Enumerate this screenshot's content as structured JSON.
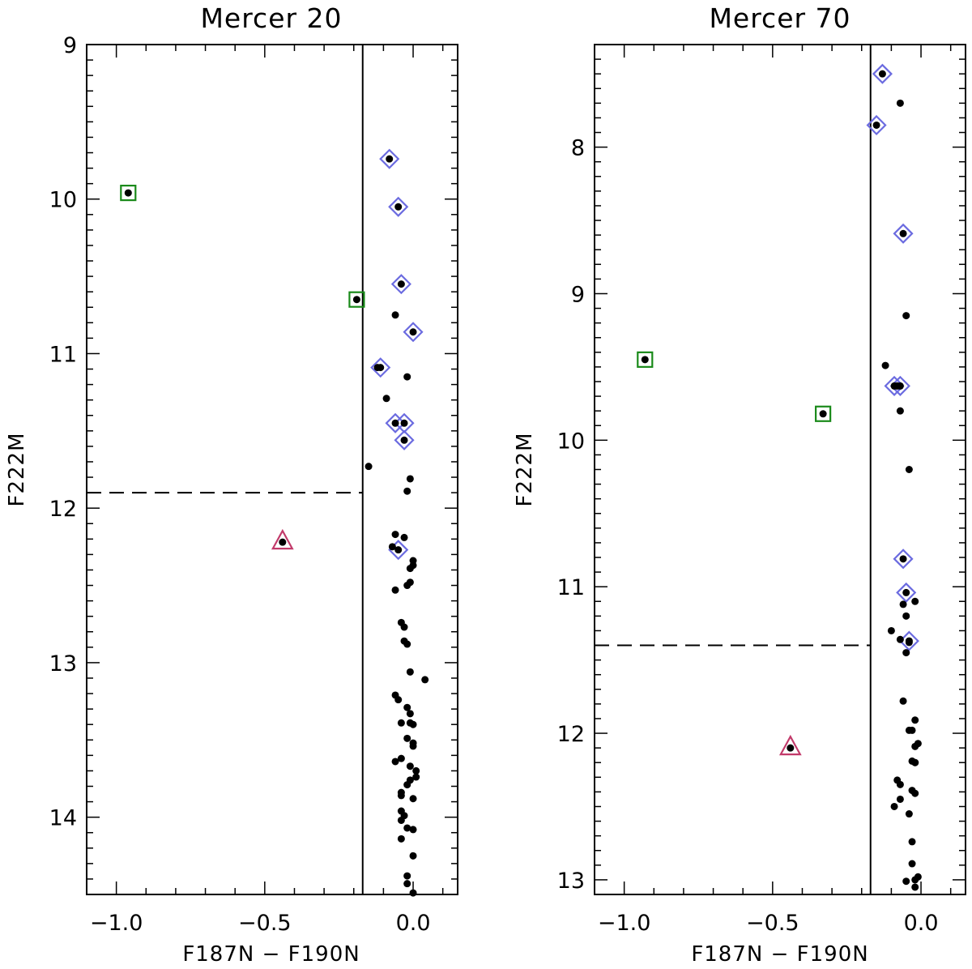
{
  "chart_data": [
    {
      "type": "scatter",
      "title": "Mercer 20",
      "xlabel": "F187N − F190N",
      "ylabel": "F222M",
      "xlim": [
        -1.1,
        0.15
      ],
      "ylim": [
        14.5,
        9.0
      ],
      "y_inverted": true,
      "xticks": [
        {
          "value": -1.0,
          "label": "−1.0"
        },
        {
          "value": -0.5,
          "label": "−0.5"
        },
        {
          "value": 0.0,
          "label": "0.0"
        }
      ],
      "yticks": [
        {
          "value": 9,
          "label": "9"
        },
        {
          "value": 10,
          "label": "10"
        },
        {
          "value": 11,
          "label": "11"
        },
        {
          "value": 12,
          "label": "12"
        },
        {
          "value": 13,
          "label": "13"
        },
        {
          "value": 14,
          "label": "14"
        }
      ],
      "vertical_line": {
        "x": -0.17,
        "style": "solid"
      },
      "horizontal_line": {
        "y": 11.9,
        "x_from": -1.1,
        "x_to": -0.17,
        "style": "dashed"
      },
      "marker_colors": {
        "square": "#1a8a1a",
        "diamond": "#6b6be0",
        "triangle": "#c23a6a",
        "dot": "#000000"
      },
      "squares": [
        [
          -0.96,
          9.96
        ],
        [
          -0.19,
          10.65
        ]
      ],
      "triangles": [
        [
          -0.44,
          12.22
        ]
      ],
      "diamonds": [
        [
          -0.08,
          9.74
        ],
        [
          -0.05,
          10.05
        ],
        [
          -0.04,
          10.55
        ],
        [
          0.0,
          10.86
        ],
        [
          -0.11,
          11.09
        ],
        [
          -0.06,
          11.45
        ],
        [
          -0.03,
          11.45
        ],
        [
          -0.03,
          11.56
        ],
        [
          -0.05,
          12.27
        ]
      ],
      "points": [
        [
          -0.96,
          9.96
        ],
        [
          -0.19,
          10.65
        ],
        [
          -0.44,
          12.22
        ],
        [
          -0.08,
          9.74
        ],
        [
          -0.05,
          10.05
        ],
        [
          -0.04,
          10.55
        ],
        [
          0.0,
          10.86
        ],
        [
          -0.11,
          11.09
        ],
        [
          -0.06,
          11.45
        ],
        [
          -0.03,
          11.45
        ],
        [
          -0.03,
          11.56
        ],
        [
          -0.05,
          12.27
        ],
        [
          -0.06,
          10.75
        ],
        [
          -0.12,
          11.09
        ],
        [
          -0.02,
          11.15
        ],
        [
          -0.09,
          11.29
        ],
        [
          -0.15,
          11.73
        ],
        [
          -0.01,
          11.81
        ],
        [
          -0.02,
          11.89
        ],
        [
          -0.06,
          12.17
        ],
        [
          -0.03,
          12.19
        ],
        [
          -0.07,
          12.25
        ],
        [
          0.0,
          12.34
        ],
        [
          0.0,
          12.37
        ],
        [
          -0.01,
          12.39
        ],
        [
          -0.01,
          12.48
        ],
        [
          -0.02,
          12.5
        ],
        [
          -0.06,
          12.53
        ],
        [
          -0.04,
          12.74
        ],
        [
          -0.03,
          12.77
        ],
        [
          -0.03,
          12.86
        ],
        [
          -0.02,
          12.88
        ],
        [
          -0.01,
          13.06
        ],
        [
          0.04,
          13.11
        ],
        [
          -0.06,
          13.21
        ],
        [
          -0.05,
          13.24
        ],
        [
          -0.02,
          13.29
        ],
        [
          -0.01,
          13.33
        ],
        [
          -0.04,
          13.39
        ],
        [
          -0.01,
          13.39
        ],
        [
          0.0,
          13.4
        ],
        [
          -0.02,
          13.49
        ],
        [
          0.0,
          13.52
        ],
        [
          0.0,
          13.54
        ],
        [
          -0.06,
          13.64
        ],
        [
          -0.04,
          13.62
        ],
        [
          -0.01,
          13.67
        ],
        [
          0.01,
          13.7
        ],
        [
          0.01,
          13.74
        ],
        [
          -0.01,
          13.76
        ],
        [
          -0.02,
          13.79
        ],
        [
          -0.04,
          13.84
        ],
        [
          -0.04,
          13.86
        ],
        [
          0.0,
          13.88
        ],
        [
          -0.04,
          13.96
        ],
        [
          -0.03,
          13.99
        ],
        [
          -0.04,
          14.02
        ],
        [
          -0.02,
          14.07
        ],
        [
          0.0,
          14.08
        ],
        [
          -0.04,
          14.14
        ],
        [
          0.0,
          14.25
        ],
        [
          -0.02,
          14.38
        ],
        [
          -0.02,
          14.43
        ],
        [
          0.0,
          14.49
        ]
      ]
    },
    {
      "type": "scatter",
      "title": "Mercer 70",
      "xlabel": "F187N − F190N",
      "ylabel": "F222M",
      "xlim": [
        -1.1,
        0.15
      ],
      "ylim": [
        13.1,
        7.3
      ],
      "y_inverted": true,
      "xticks": [
        {
          "value": -1.0,
          "label": "−1.0"
        },
        {
          "value": -0.5,
          "label": "−0.5"
        },
        {
          "value": 0.0,
          "label": "0.0"
        }
      ],
      "yticks": [
        {
          "value": 8,
          "label": "8"
        },
        {
          "value": 9,
          "label": "9"
        },
        {
          "value": 10,
          "label": "10"
        },
        {
          "value": 11,
          "label": "11"
        },
        {
          "value": 12,
          "label": "12"
        },
        {
          "value": 13,
          "label": "13"
        }
      ],
      "vertical_line": {
        "x": -0.17,
        "style": "solid"
      },
      "horizontal_line": {
        "y": 11.4,
        "x_from": -1.1,
        "x_to": -0.17,
        "style": "dashed"
      },
      "marker_colors": {
        "square": "#1a8a1a",
        "diamond": "#6b6be0",
        "triangle": "#c23a6a",
        "dot": "#000000"
      },
      "squares": [
        [
          -0.93,
          9.45
        ],
        [
          -0.33,
          9.82
        ]
      ],
      "triangles": [
        [
          -0.44,
          12.1
        ]
      ],
      "diamonds": [
        [
          -0.13,
          7.5
        ],
        [
          -0.15,
          7.85
        ],
        [
          -0.06,
          8.59
        ],
        [
          -0.09,
          9.63
        ],
        [
          -0.07,
          9.63
        ],
        [
          -0.06,
          10.81
        ],
        [
          -0.05,
          11.04
        ],
        [
          -0.04,
          11.37
        ]
      ],
      "points": [
        [
          -0.93,
          9.45
        ],
        [
          -0.33,
          9.82
        ],
        [
          -0.44,
          12.1
        ],
        [
          -0.13,
          7.5
        ],
        [
          -0.15,
          7.85
        ],
        [
          -0.06,
          8.59
        ],
        [
          -0.09,
          9.63
        ],
        [
          -0.07,
          9.63
        ],
        [
          -0.06,
          10.81
        ],
        [
          -0.05,
          11.04
        ],
        [
          -0.04,
          11.37
        ],
        [
          -0.07,
          7.7
        ],
        [
          -0.05,
          9.15
        ],
        [
          -0.12,
          9.49
        ],
        [
          -0.08,
          9.63
        ],
        [
          -0.07,
          9.8
        ],
        [
          -0.04,
          10.2
        ],
        [
          -0.06,
          11.12
        ],
        [
          -0.02,
          11.1
        ],
        [
          -0.05,
          11.2
        ],
        [
          -0.1,
          11.3
        ],
        [
          -0.07,
          11.36
        ],
        [
          -0.04,
          11.38
        ],
        [
          -0.05,
          11.45
        ],
        [
          -0.06,
          11.78
        ],
        [
          -0.02,
          11.91
        ],
        [
          -0.04,
          11.98
        ],
        [
          -0.03,
          11.98
        ],
        [
          -0.01,
          12.07
        ],
        [
          -0.02,
          12.09
        ],
        [
          -0.03,
          12.19
        ],
        [
          -0.02,
          12.2
        ],
        [
          -0.02,
          12.2
        ],
        [
          -0.08,
          12.32
        ],
        [
          -0.07,
          12.35
        ],
        [
          -0.03,
          12.39
        ],
        [
          -0.02,
          12.41
        ],
        [
          -0.07,
          12.45
        ],
        [
          -0.09,
          12.5
        ],
        [
          -0.04,
          12.55
        ],
        [
          -0.03,
          12.74
        ],
        [
          -0.03,
          12.89
        ],
        [
          -0.01,
          12.98
        ],
        [
          -0.02,
          13.0
        ],
        [
          -0.05,
          13.01
        ],
        [
          -0.02,
          13.05
        ]
      ]
    }
  ]
}
